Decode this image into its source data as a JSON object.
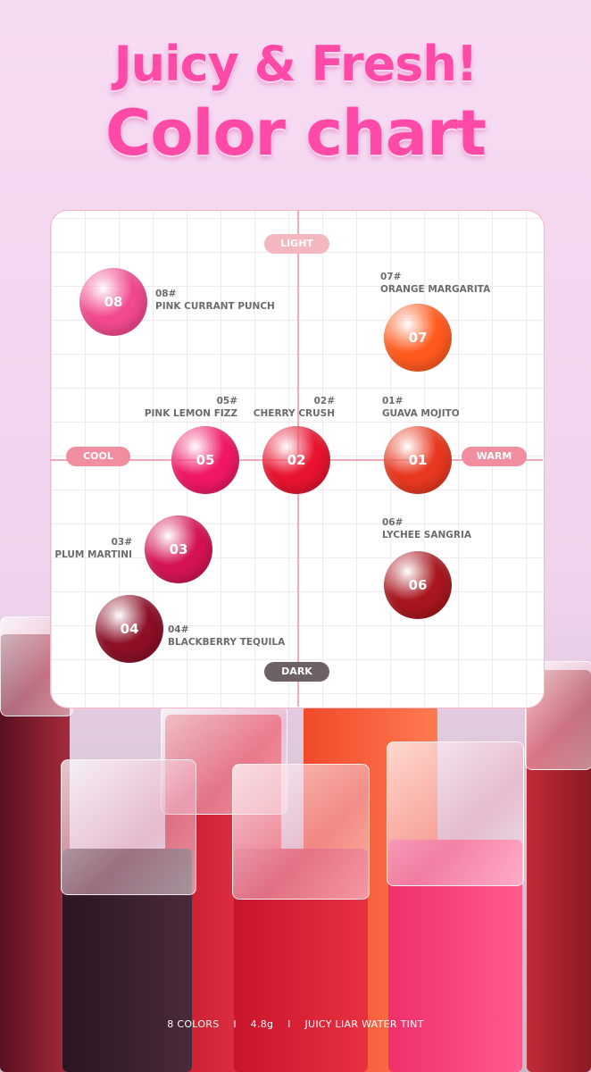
{
  "title": {
    "line1": "Juicy & Fresh!",
    "line2": "Color chart"
  },
  "axes": {
    "top": "LIGHT",
    "bottom": "DARK",
    "left": "COOL",
    "right": "WARM"
  },
  "swatches": [
    {
      "num": "08",
      "code": "08#",
      "name": "PINK CURRANT PUNCH",
      "color": "#f2488e"
    },
    {
      "num": "07",
      "code": "07#",
      "name": "ORANGE MARGARITA",
      "color": "#ff5a1e"
    },
    {
      "num": "05",
      "code": "05#",
      "name": "PINK LEMON FIZZ",
      "color": "#ef1766"
    },
    {
      "num": "02",
      "code": "02#",
      "name": "CHERRY CRUSH",
      "color": "#e8132f"
    },
    {
      "num": "01",
      "code": "01#",
      "name": "GUAVA MOJITO",
      "color": "#e8381f"
    },
    {
      "num": "03",
      "code": "03#",
      "name": "PLUM MARTINI",
      "color": "#d41452"
    },
    {
      "num": "06",
      "code": "06#",
      "name": "LYCHEE SANGRIA",
      "color": "#a8161e"
    },
    {
      "num": "04",
      "code": "04#",
      "name": "BLACKBERRY TEQUILA",
      "color": "#8c0f26"
    }
  ],
  "footer": {
    "colors": "8 COLORS",
    "sep": "I",
    "weight": "4.8g",
    "product": "JUICY LIAR WATER TINT"
  }
}
